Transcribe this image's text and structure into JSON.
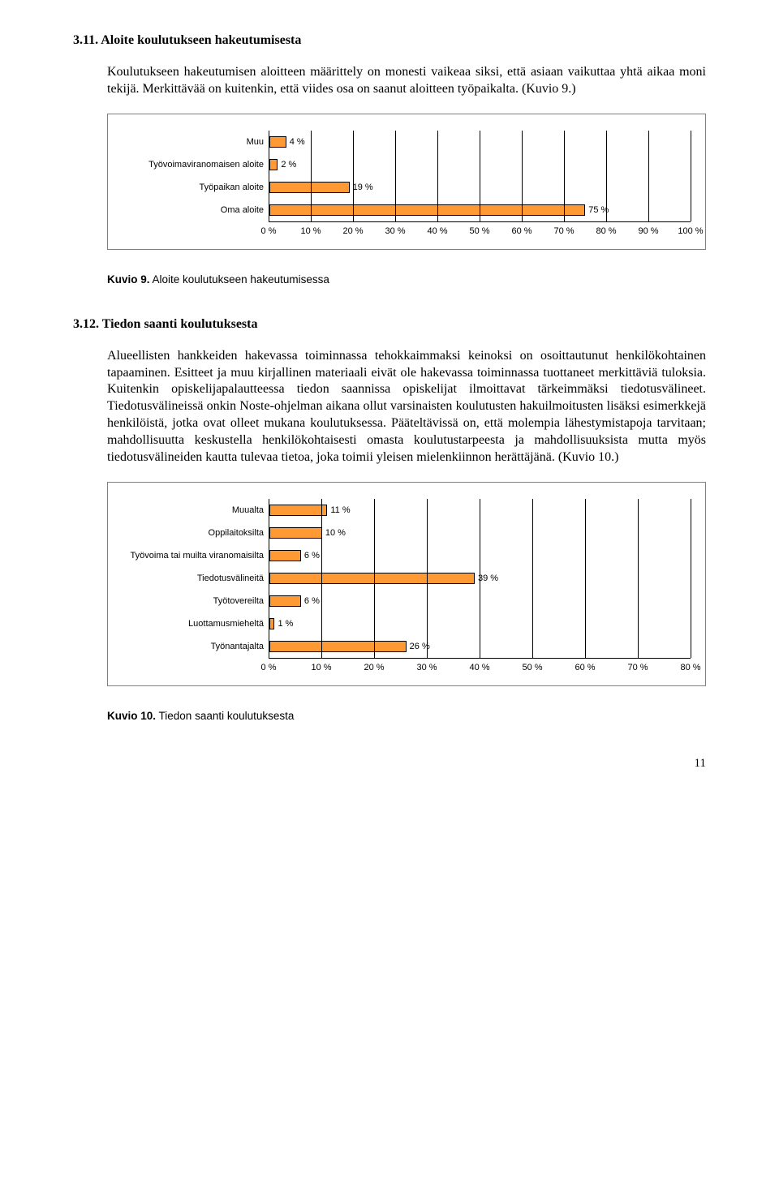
{
  "section1": {
    "heading": "3.11. Aloite koulutukseen hakeutumisesta",
    "para": "Koulutukseen hakeutumisen aloitteen määrittely on monesti vaikeaa siksi, että asiaan vaikuttaa yhtä aikaa moni tekijä. Merkittävää on kuitenkin, että viides osa on saanut aloitteen työpaikalta. (Kuvio 9.)"
  },
  "chart1": {
    "type": "bar-horizontal",
    "bar_color": "#ff9933",
    "bar_border": "#000000",
    "background": "#ffffff",
    "grid_color": "#000000",
    "font_size": 11,
    "xmin": 0,
    "xmax": 100,
    "xtick_step": 10,
    "xticks": [
      "0 %",
      "10 %",
      "20 %",
      "30 %",
      "40 %",
      "50 %",
      "60 %",
      "70 %",
      "80 %",
      "90 %",
      "100 %"
    ],
    "categories": [
      {
        "label": "Muu",
        "value": 4,
        "value_label": "4 %"
      },
      {
        "label": "Työvoimaviranomaisen aloite",
        "value": 2,
        "value_label": "2 %"
      },
      {
        "label": "Työpaikan aloite",
        "value": 19,
        "value_label": "19 %"
      },
      {
        "label": "Oma aloite",
        "value": 75,
        "value_label": "75 %"
      }
    ]
  },
  "kuvio1": {
    "bold": "Kuvio 9.",
    "text": " Aloite koulutukseen hakeutumisessa"
  },
  "section2": {
    "heading": "3.12. Tiedon saanti koulutuksesta",
    "para": "Alueellisten hankkeiden hakevassa toiminnassa tehokkaimmaksi keinoksi on osoittautunut henkilökohtainen tapaaminen. Esitteet ja muu kirjallinen materiaali eivät ole hakevassa toiminnassa tuottaneet merkittäviä tuloksia. Kuitenkin opiskelijapalautteessa tiedon saannissa opiskelijat ilmoittavat tärkeimmäksi tiedotusvälineet. Tiedotusvälineissä onkin Noste-ohjelman aikana ollut varsinaisten koulutusten hakuilmoitusten lisäksi esimerkkejä henkilöistä, jotka ovat olleet mukana koulutuksessa. Pääteltävissä on, että molempia lähestymistapoja tarvitaan; mahdollisuutta keskustella henkilökohtaisesti omasta koulutustarpeesta ja mahdollisuuksista mutta myös tiedotusvälineiden kautta tulevaa tietoa, joka toimii yleisen mielenkiinnon herättäjänä. (Kuvio 10.)"
  },
  "chart2": {
    "type": "bar-horizontal",
    "bar_color": "#ff9933",
    "bar_border": "#000000",
    "background": "#ffffff",
    "grid_color": "#000000",
    "font_size": 11,
    "xmin": 0,
    "xmax": 80,
    "xtick_step": 10,
    "xticks": [
      "0 %",
      "10 %",
      "20 %",
      "30 %",
      "40 %",
      "50 %",
      "60 %",
      "70 %",
      "80 %"
    ],
    "categories": [
      {
        "label": "Muualta",
        "value": 11,
        "value_label": "11 %"
      },
      {
        "label": "Oppilaitoksilta",
        "value": 10,
        "value_label": "10 %"
      },
      {
        "label": "Työvoima tai muilta viranomaisilta",
        "value": 6,
        "value_label": "6 %"
      },
      {
        "label": "Tiedotusvälineitä",
        "value": 39,
        "value_label": "39 %"
      },
      {
        "label": "Työtovereilta",
        "value": 6,
        "value_label": "6 %"
      },
      {
        "label": "Luottamusmieheltä",
        "value": 1,
        "value_label": "1 %"
      },
      {
        "label": "Työnantajalta",
        "value": 26,
        "value_label": "26 %"
      }
    ]
  },
  "kuvio2": {
    "bold": "Kuvio 10.",
    "text": " Tiedon saanti koulutuksesta"
  },
  "page_number": "11"
}
